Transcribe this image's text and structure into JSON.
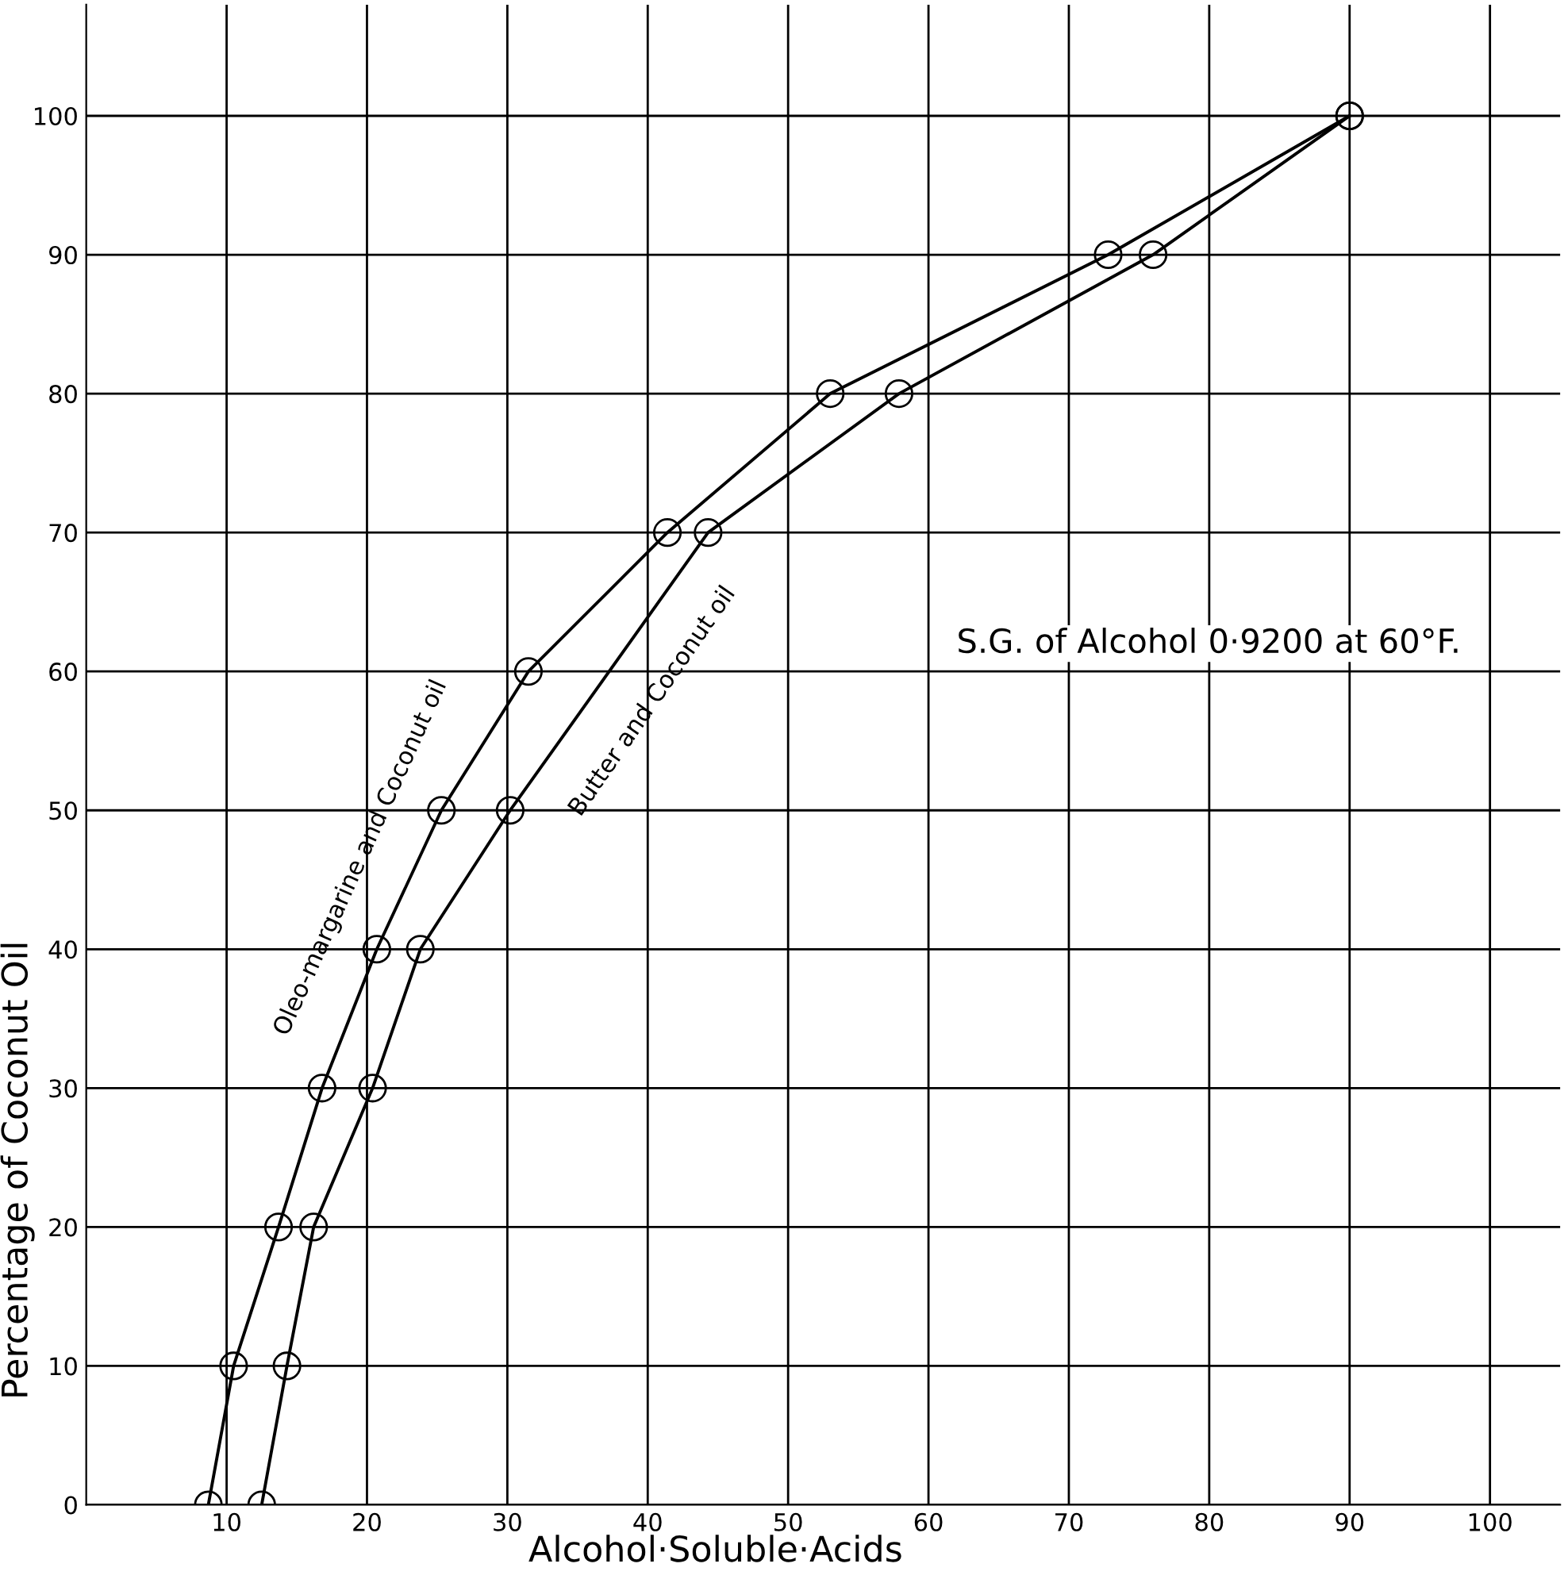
{
  "chart_data": {
    "type": "line",
    "xlabel": "Alcohol·Soluble·Acids",
    "ylabel": "Percentage of Coconut Oil",
    "annotations": [
      "S.G. of Alcohol 0·9200 at 60°F."
    ],
    "series": [
      {
        "name": "Oleo-margarine and Coconut oil",
        "color": "#000000",
        "x": [
          8.7,
          10.5,
          13.7,
          16.8,
          20.7,
          25.3,
          31.5,
          41.4,
          53.0,
          72.8,
          90
        ],
        "values": [
          0,
          10,
          20,
          30,
          40,
          50,
          60,
          70,
          80,
          90,
          100
        ]
      },
      {
        "name": "Butter and Coconut oil",
        "color": "#000000",
        "x": [
          12.5,
          14.3,
          16.2,
          20.4,
          23.8,
          30.2,
          44.3,
          57.9,
          76.0,
          90
        ],
        "values": [
          0,
          10,
          20,
          30,
          40,
          50,
          70,
          80,
          90,
          100
        ]
      }
    ],
    "xlim": [
      0,
      105
    ],
    "ylim": [
      0,
      108
    ],
    "xticks": [
      10,
      20,
      30,
      40,
      50,
      60,
      70,
      80,
      90,
      100
    ],
    "yticks": [
      0,
      10,
      20,
      30,
      40,
      50,
      60,
      70,
      80,
      90,
      100
    ],
    "grid": true,
    "marker": "circle",
    "line_style": "solid",
    "legend": false
  }
}
